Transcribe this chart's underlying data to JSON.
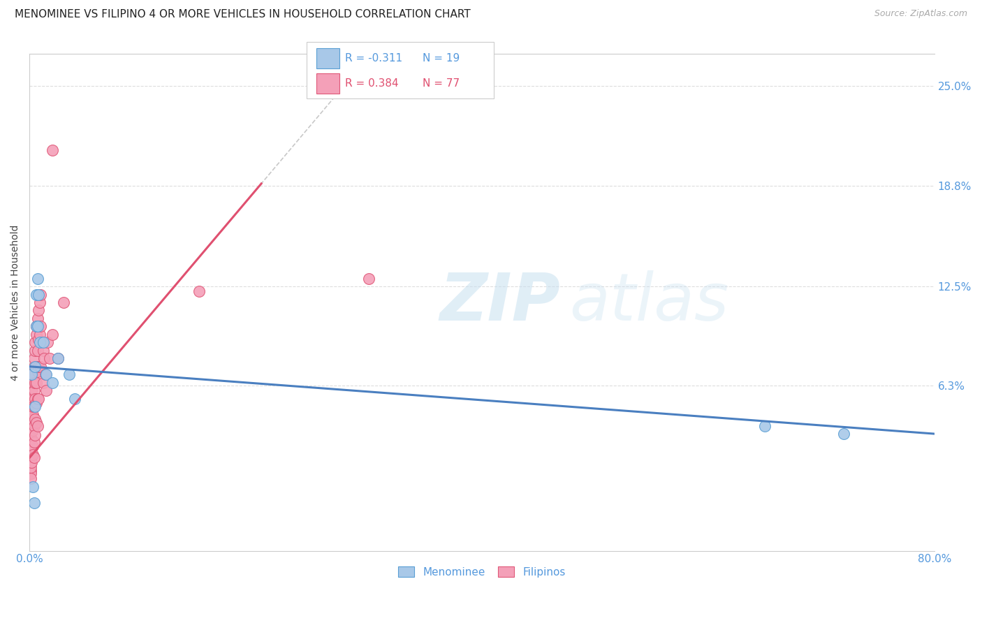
{
  "title": "MENOMINEE VS FILIPINO 4 OR MORE VEHICLES IN HOUSEHOLD CORRELATION CHART",
  "source": "Source: ZipAtlas.com",
  "ylabel": "4 or more Vehicles in Household",
  "xlim": [
    0.0,
    0.8
  ],
  "ylim": [
    -0.04,
    0.27
  ],
  "yticks": [
    0.063,
    0.125,
    0.188,
    0.25
  ],
  "ytick_labels": [
    "6.3%",
    "12.5%",
    "18.8%",
    "25.0%"
  ],
  "xticks": [
    0.0,
    0.1,
    0.2,
    0.3,
    0.4,
    0.5,
    0.6,
    0.7,
    0.8
  ],
  "menominee_color": "#a8c8e8",
  "menominee_edge": "#5a9fd4",
  "filipino_color": "#f4a0b8",
  "filipino_edge": "#e05878",
  "trend_menominee_color": "#4a7fc0",
  "trend_filipino_color": "#e05070",
  "trend_extension_color": "#c8c8c8",
  "legend_R_menominee": "R = -0.311",
  "legend_N_menominee": "N = 19",
  "legend_R_filipino": "R = 0.384",
  "legend_N_filipino": "N = 77",
  "background_color": "#ffffff",
  "grid_color": "#dddddd",
  "title_fontsize": 11,
  "axis_label_fontsize": 10,
  "tick_fontsize": 11,
  "source_fontsize": 9,
  "menominee_x": [
    0.002,
    0.003,
    0.004,
    0.005,
    0.005,
    0.006,
    0.006,
    0.007,
    0.007,
    0.008,
    0.009,
    0.012,
    0.015,
    0.02,
    0.025,
    0.035,
    0.04,
    0.65,
    0.72
  ],
  "menominee_y": [
    0.07,
    0.0,
    -0.01,
    0.075,
    0.05,
    0.12,
    0.1,
    0.13,
    0.1,
    0.12,
    0.09,
    0.09,
    0.07,
    0.065,
    0.08,
    0.07,
    0.055,
    0.038,
    0.033
  ],
  "filipino_x": [
    0.001,
    0.001,
    0.001,
    0.001,
    0.001,
    0.001,
    0.001,
    0.001,
    0.001,
    0.001,
    0.001,
    0.001,
    0.001,
    0.002,
    0.002,
    0.002,
    0.002,
    0.002,
    0.002,
    0.002,
    0.002,
    0.002,
    0.003,
    0.003,
    0.003,
    0.003,
    0.003,
    0.003,
    0.003,
    0.003,
    0.003,
    0.004,
    0.004,
    0.004,
    0.004,
    0.004,
    0.004,
    0.004,
    0.005,
    0.005,
    0.005,
    0.005,
    0.005,
    0.005,
    0.006,
    0.006,
    0.006,
    0.006,
    0.006,
    0.006,
    0.007,
    0.007,
    0.007,
    0.007,
    0.007,
    0.008,
    0.008,
    0.008,
    0.008,
    0.009,
    0.009,
    0.01,
    0.01,
    0.01,
    0.011,
    0.012,
    0.012,
    0.013,
    0.014,
    0.015,
    0.016,
    0.018,
    0.02,
    0.025,
    0.03,
    0.15,
    0.3
  ],
  "filipino_y": [
    0.02,
    0.015,
    0.025,
    0.01,
    0.03,
    0.018,
    0.022,
    0.008,
    0.035,
    0.012,
    0.038,
    0.005,
    0.04,
    0.045,
    0.05,
    0.055,
    0.035,
    0.025,
    0.015,
    0.042,
    0.06,
    0.03,
    0.065,
    0.055,
    0.045,
    0.035,
    0.025,
    0.07,
    0.05,
    0.04,
    0.02,
    0.075,
    0.06,
    0.05,
    0.038,
    0.028,
    0.018,
    0.08,
    0.085,
    0.065,
    0.055,
    0.042,
    0.032,
    0.09,
    0.095,
    0.075,
    0.065,
    0.052,
    0.04,
    0.1,
    0.105,
    0.085,
    0.072,
    0.055,
    0.038,
    0.11,
    0.092,
    0.075,
    0.055,
    0.115,
    0.095,
    0.12,
    0.1,
    0.075,
    0.09,
    0.085,
    0.065,
    0.08,
    0.07,
    0.06,
    0.09,
    0.08,
    0.095,
    0.08,
    0.115,
    0.122,
    0.13
  ],
  "filipino_outlier_x": [
    0.02
  ],
  "filipino_outlier_y": [
    0.21
  ]
}
